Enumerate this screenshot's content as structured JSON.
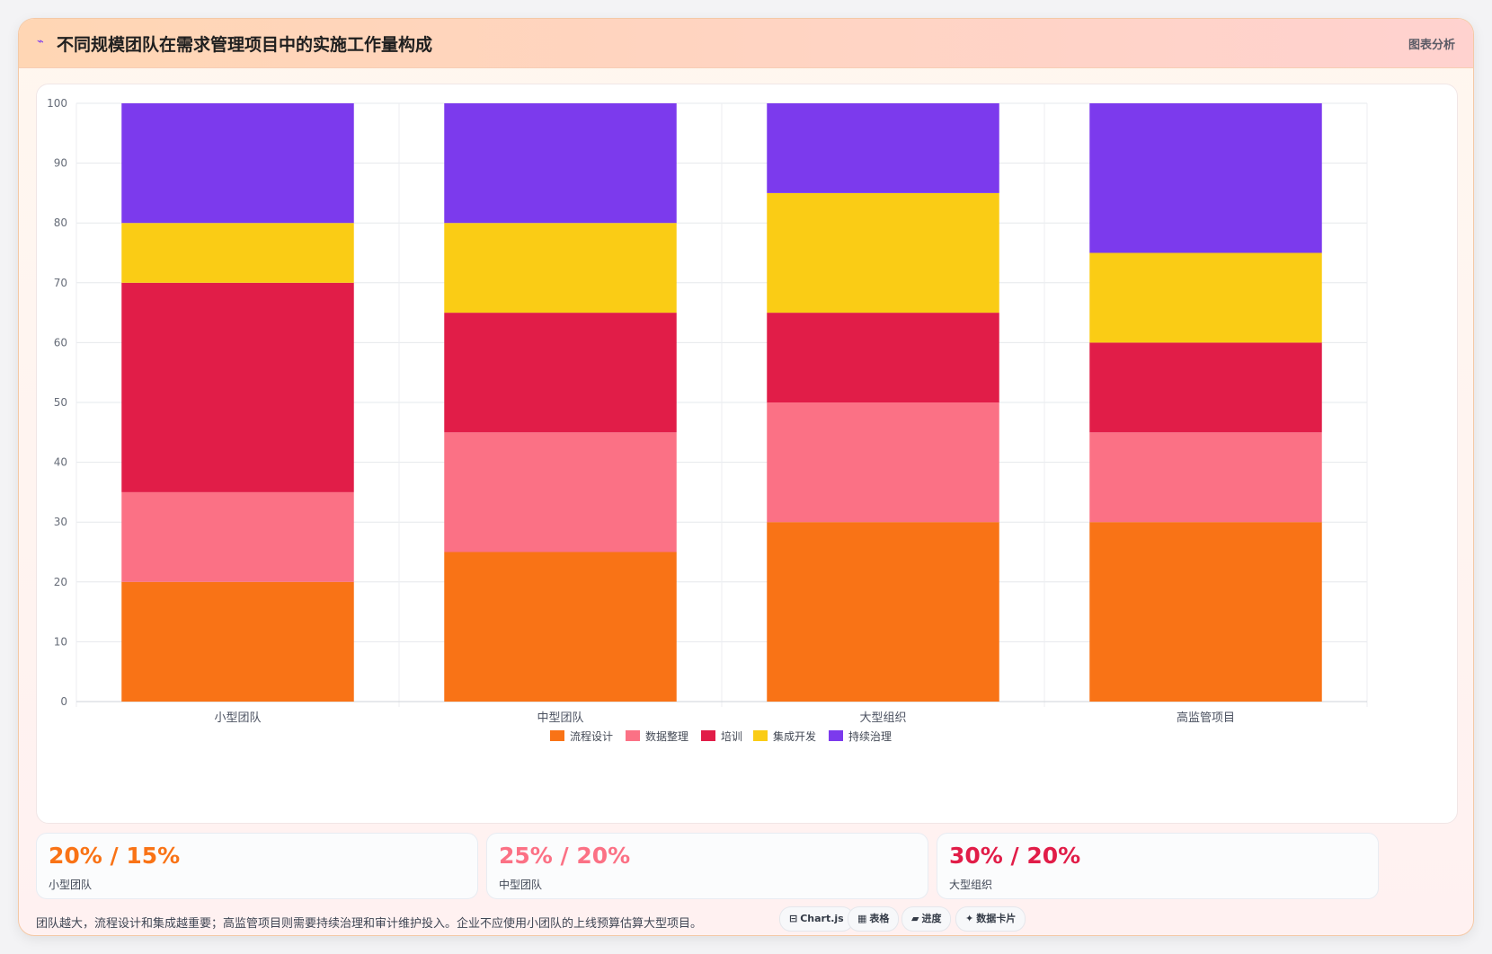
{
  "header": {
    "icon": "chart-icon",
    "icon_glyph": "⌁",
    "title": "不同规模团队在需求管理项目中的实施工作量构成",
    "tag": "图表分析"
  },
  "chart_data": {
    "type": "bar",
    "stacked": true,
    "categories": [
      "小型团队",
      "中型团队",
      "大型组织",
      "高监管项目"
    ],
    "series": [
      {
        "name": "流程设计",
        "color": "#f97316",
        "values": [
          20,
          25,
          30,
          30
        ]
      },
      {
        "name": "数据整理",
        "color": "#fb7185",
        "values": [
          15,
          20,
          20,
          15
        ]
      },
      {
        "name": "培训",
        "color": "#e11d48",
        "values": [
          35,
          20,
          15,
          15
        ]
      },
      {
        "name": "集成开发",
        "color": "#facc15",
        "values": [
          10,
          15,
          20,
          15
        ]
      },
      {
        "name": "持续治理",
        "color": "#7c3aed",
        "values": [
          20,
          20,
          15,
          25
        ]
      }
    ],
    "ylim": [
      0,
      100
    ],
    "yticks": [
      0,
      10,
      20,
      30,
      40,
      50,
      60,
      70,
      80,
      90,
      100
    ],
    "grid": true,
    "legend": "bottom"
  },
  "stats": [
    {
      "value": "20% / 15%",
      "label": "小型团队",
      "color": "#f97316"
    },
    {
      "value": "25% / 20%",
      "label": "中型团队",
      "color": "#fb7185"
    },
    {
      "value": "30% / 20%",
      "label": "大型组织",
      "color": "#e11d48"
    }
  ],
  "note": "团队越大，流程设计和集成越重要；高监管项目则需要持续治理和审计维护投入。企业不应使用小团队的上线预算估算大型项目。",
  "pills": [
    {
      "icon": "chartjs-icon",
      "glyph": "⊟",
      "label": "Chart.js"
    },
    {
      "icon": "table-icon",
      "glyph": "▦",
      "label": "表格"
    },
    {
      "icon": "progress-icon",
      "glyph": "▰",
      "label": "进度"
    },
    {
      "icon": "sparkle-icon",
      "glyph": "✦",
      "label": "数据卡片"
    }
  ]
}
